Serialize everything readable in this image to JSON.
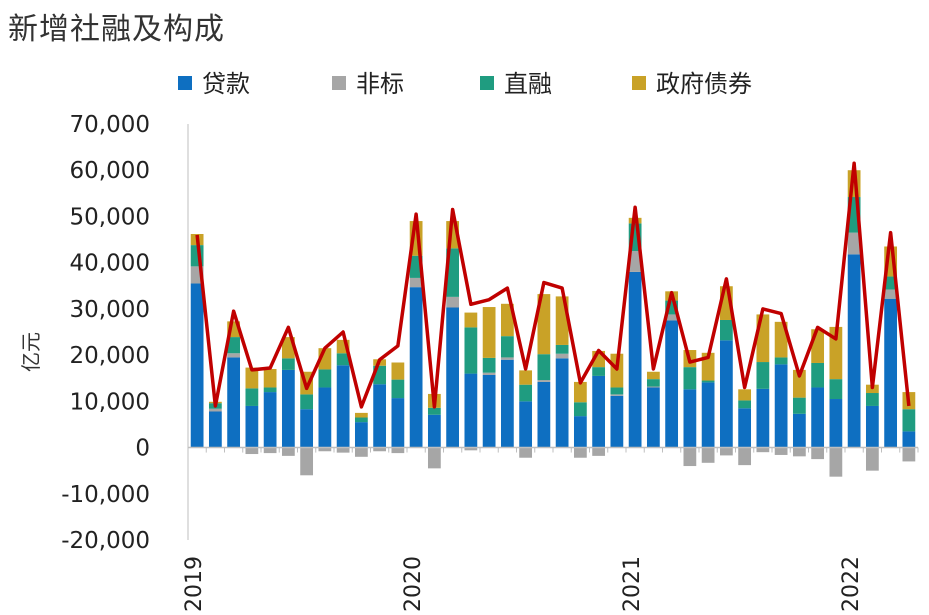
{
  "chart_data": {
    "type": "bar",
    "title": "新增社融及构成",
    "ylabel": "亿元",
    "ylim": [
      -20000,
      70000
    ],
    "y_ticks": [
      "70,000",
      "60,000",
      "50,000",
      "40,000",
      "30,000",
      "20,000",
      "10,000",
      "0",
      "-10,000",
      "-20,000"
    ],
    "x_tick_labels": [
      {
        "label": "2019",
        "index": 0
      },
      {
        "label": "2020",
        "index": 12
      },
      {
        "label": "2021",
        "index": 24
      },
      {
        "label": "2022",
        "index": 36
      }
    ],
    "legend": [
      "贷款",
      "非标",
      "直融",
      "政府债券"
    ],
    "colors": {
      "贷款": "#0E6FC1",
      "非标": "#A6A6A6",
      "直融": "#1F9C80",
      "政府债券": "#C9A227",
      "line": "#C00000"
    },
    "series": [
      {
        "name": "贷款",
        "values": [
          35500,
          7800,
          19500,
          9000,
          12000,
          16800,
          8300,
          13000,
          17800,
          5500,
          13700,
          10700,
          34700,
          7100,
          30300,
          16000,
          15700,
          19000,
          10000,
          14200,
          19300,
          6800,
          15500,
          11200,
          38000,
          13000,
          27500,
          12600,
          14100,
          23200,
          8500,
          12700,
          18000,
          7300,
          13000,
          10500,
          41800,
          9000,
          32200,
          3500
        ]
      },
      {
        "name": "非标",
        "values": [
          3700,
          600,
          900,
          -1400,
          -1200,
          -1800,
          -6000,
          -800,
          -1100,
          -2000,
          -800,
          -1200,
          2000,
          -4500,
          2300,
          -600,
          500,
          500,
          -2200,
          400,
          1000,
          -2200,
          -1800,
          300,
          4500,
          200,
          1300,
          -4000,
          -3300,
          -1700,
          -3800,
          -1000,
          -1600,
          -1900,
          -2500,
          -6300,
          4700,
          -5000,
          2000,
          -3000
        ]
      },
      {
        "name": "直融",
        "values": [
          4600,
          1200,
          3500,
          3800,
          1000,
          2500,
          3200,
          3900,
          2600,
          1000,
          4000,
          4000,
          4800,
          1500,
          10500,
          10000,
          3200,
          4600,
          3600,
          5600,
          1900,
          3000,
          1900,
          1500,
          6000,
          1600,
          3000,
          4800,
          400,
          4400,
          1700,
          5800,
          1500,
          3500,
          5300,
          4300,
          7700,
          2800,
          2800,
          4800
        ]
      },
      {
        "name": "政府债券",
        "values": [
          2400,
          300,
          3400,
          4500,
          4000,
          4600,
          4900,
          4600,
          2900,
          1000,
          1400,
          3700,
          7500,
          3000,
          5900,
          3200,
          11000,
          7000,
          3100,
          13000,
          10500,
          4400,
          3500,
          7300,
          1200,
          1600,
          2000,
          3700,
          6000,
          7300,
          2400,
          10300,
          7700,
          6000,
          7300,
          11300,
          5800,
          1800,
          6500,
          3700
        ]
      },
      {
        "name": "新增社融",
        "type": "line",
        "values": [
          46000,
          9000,
          29500,
          16800,
          17200,
          26000,
          12800,
          21500,
          25000,
          8800,
          19000,
          22000,
          50500,
          8800,
          51500,
          31000,
          32000,
          34500,
          17000,
          35700,
          34500,
          14000,
          21000,
          17000,
          52000,
          17000,
          33500,
          18500,
          19500,
          36500,
          13000,
          30000,
          29000,
          15500,
          26000,
          23500,
          61500,
          13000,
          46500,
          9000
        ]
      }
    ]
  }
}
